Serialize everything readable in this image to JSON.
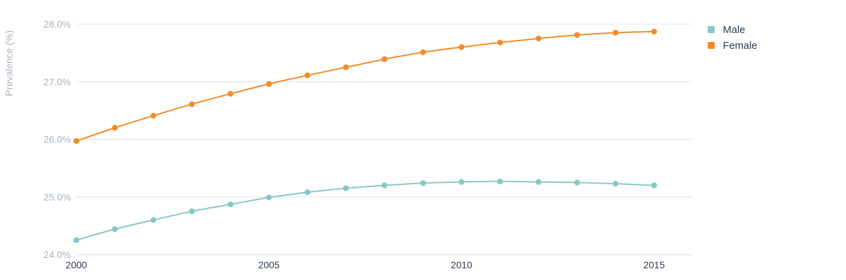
{
  "chart_data": {
    "type": "line",
    "title": "",
    "xlabel": "",
    "ylabel": "Prevalence (%)",
    "x": [
      2000,
      2001,
      2002,
      2003,
      2004,
      2005,
      2006,
      2007,
      2008,
      2009,
      2010,
      2011,
      2012,
      2013,
      2014,
      2015
    ],
    "xticks": [
      2000,
      2005,
      2010,
      2015
    ],
    "xtick_labels": [
      "2000",
      "2005",
      "2010",
      "2015"
    ],
    "ylim": [
      24.0,
      28.0
    ],
    "yticks": [
      24.0,
      25.0,
      26.0,
      27.0,
      28.0
    ],
    "ytick_labels": [
      "24.0%",
      "25.0%",
      "26.0%",
      "27.0%",
      "28.0%"
    ],
    "grid": true,
    "legend_position": "top-right",
    "series": [
      {
        "name": "Male",
        "color": "#86c8c6",
        "values": [
          24.25,
          24.44,
          24.6,
          24.75,
          24.87,
          24.99,
          25.08,
          25.15,
          25.2,
          25.24,
          25.26,
          25.27,
          25.26,
          25.25,
          25.23,
          25.2
        ]
      },
      {
        "name": "Female",
        "color": "#f28c28",
        "values": [
          25.97,
          26.2,
          26.41,
          26.61,
          26.79,
          26.96,
          27.11,
          27.25,
          27.39,
          27.51,
          27.6,
          27.68,
          27.75,
          27.81,
          27.85,
          27.87
        ]
      }
    ]
  }
}
